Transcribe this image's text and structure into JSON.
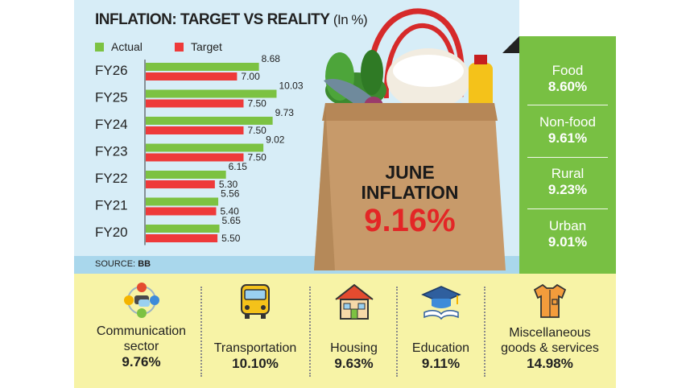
{
  "title": "INFLATION: TARGET VS REALITY",
  "title_unit": "(In %)",
  "legend": {
    "actual": "Actual",
    "target": "Target"
  },
  "source_label": "SOURCE:",
  "source_value": "BB",
  "colors": {
    "actual": "#7cc242",
    "target": "#ee3a3a",
    "panel_green": "#78c043",
    "panel_blue": "#d7edf7",
    "panel_yellow": "#f7f3a6"
  },
  "chart_data": {
    "type": "bar",
    "orientation": "horizontal",
    "title": "INFLATION: TARGET VS REALITY (In %)",
    "categories": [
      "FY26",
      "FY25",
      "FY24",
      "FY23",
      "FY22",
      "FY21",
      "FY20"
    ],
    "series": [
      {
        "name": "Actual",
        "values": [
          8.68,
          10.03,
          9.73,
          9.02,
          6.15,
          5.56,
          5.65
        ]
      },
      {
        "name": "Target",
        "values": [
          7.0,
          7.5,
          7.5,
          7.5,
          5.3,
          5.4,
          5.5
        ]
      }
    ],
    "value_labels": {
      "Actual": [
        "8.68",
        "10.03",
        "9.73",
        "9.02",
        "6.15",
        "5.56",
        "5.65"
      ],
      "Target": [
        "7.00",
        "7.50",
        "7.50",
        "7.50",
        "5.30",
        "5.40",
        "5.50"
      ]
    },
    "xlim": [
      0,
      10.5
    ],
    "legend_position": "top-left",
    "grid": false
  },
  "bag": {
    "line1": "JUNE",
    "line2": "INFLATION",
    "value": "9.16%"
  },
  "side_stats": [
    {
      "label": "Food",
      "value": "8.60%"
    },
    {
      "label": "Non-food",
      "value": "9.61%"
    },
    {
      "label": "Rural",
      "value": "9.23%"
    },
    {
      "label": "Urban",
      "value": "9.01%"
    }
  ],
  "categories": [
    {
      "line1": "Communication",
      "line2": "sector",
      "value": "9.76%",
      "icon": "communication-icon"
    },
    {
      "line1": "",
      "line2": "Transportation",
      "value": "10.10%",
      "icon": "bus-icon"
    },
    {
      "line1": "",
      "line2": "Housing",
      "value": "9.63%",
      "icon": "house-icon"
    },
    {
      "line1": "",
      "line2": "Education",
      "value": "9.11%",
      "icon": "graduation-cap-icon"
    },
    {
      "line1": "Miscellaneous",
      "line2": "goods & services",
      "value": "14.98%",
      "icon": "shirt-icon"
    }
  ]
}
